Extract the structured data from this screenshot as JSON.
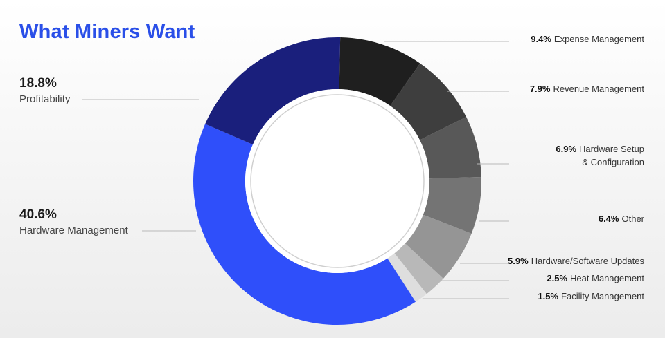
{
  "title": "What Miners Want",
  "colors": {
    "title": "#2a4fe8",
    "center": "#ffffff",
    "ring": "#cfcfcf"
  },
  "chart_data": {
    "type": "pie",
    "title": "What Miners Want",
    "slices": [
      {
        "label": "Expense Management",
        "value": 9.4,
        "pct_text": "9.4%",
        "color": "#1f1f1f"
      },
      {
        "label": "Revenue Management",
        "value": 7.9,
        "pct_text": "7.9%",
        "color": "#3e3e3e"
      },
      {
        "label": "Hardware Setup & Configuration",
        "lines": [
          "Hardware Setup",
          "& Configuration"
        ],
        "value": 6.9,
        "pct_text": "6.9%",
        "color": "#585858"
      },
      {
        "label": "Other",
        "value": 6.4,
        "pct_text": "6.4%",
        "color": "#747474"
      },
      {
        "label": "Hardware/Software Updates",
        "value": 5.9,
        "pct_text": "5.9%",
        "color": "#959595"
      },
      {
        "label": "Heat Management",
        "value": 2.5,
        "pct_text": "2.5%",
        "color": "#b8b8b8"
      },
      {
        "label": "Facility Management",
        "value": 1.5,
        "pct_text": "1.5%",
        "color": "#dedede"
      },
      {
        "label": "Hardware Management",
        "value": 40.6,
        "pct_text": "40.6%",
        "color": "#2f4ffa"
      },
      {
        "label": "Profitability",
        "value": 18.8,
        "pct_text": "18.8%",
        "color": "#1a1f7c"
      }
    ]
  }
}
